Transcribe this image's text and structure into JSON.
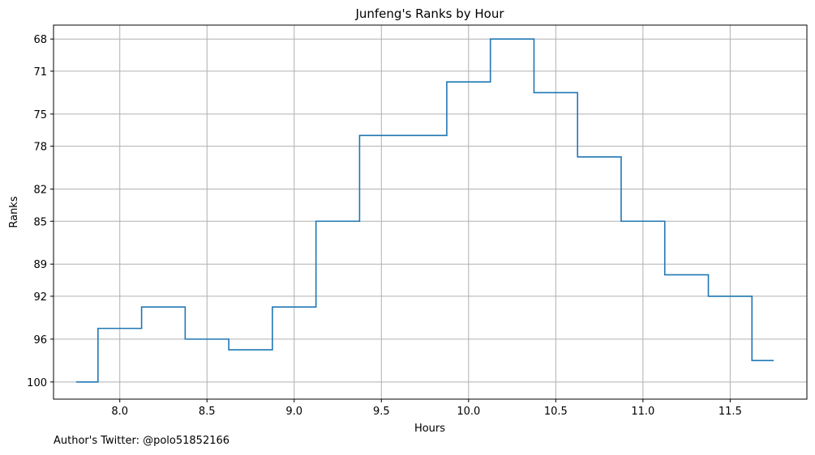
{
  "chart_data": {
    "type": "line",
    "step": "mid",
    "title": "Junfeng's Ranks by Hour",
    "xlabel": "Hours",
    "ylabel": "Ranks",
    "xlim": [
      7.62,
      11.94
    ],
    "ylim": [
      101.6,
      66.7
    ],
    "y_inverted": true,
    "grid": true,
    "x_ticks": [
      8.0,
      8.5,
      9.0,
      9.5,
      10.0,
      10.5,
      11.0,
      11.5
    ],
    "x_tick_labels": [
      "8.0",
      "8.5",
      "9.0",
      "9.5",
      "10.0",
      "10.5",
      "11.0",
      "11.5"
    ],
    "y_ticks": [
      68,
      71,
      75,
      78,
      82,
      85,
      89,
      92,
      96,
      100
    ],
    "y_tick_labels": [
      "68",
      "71",
      "75",
      "78",
      "82",
      "85",
      "89",
      "92",
      "96",
      "100"
    ],
    "line_color": "#1f77b4",
    "series": [
      {
        "x": [
          7.75,
          8.0,
          8.25,
          8.5,
          8.75,
          9.0,
          9.25,
          9.5,
          9.75,
          10.0,
          10.25,
          10.5,
          10.75,
          11.0,
          11.25,
          11.5,
          11.75
        ],
        "values": [
          100,
          95,
          93,
          96,
          97,
          93,
          85,
          77,
          77,
          72,
          68,
          73,
          79,
          85,
          90,
          92,
          98
        ]
      }
    ]
  },
  "footer": {
    "author": "Author's Twitter: @polo51852166"
  }
}
